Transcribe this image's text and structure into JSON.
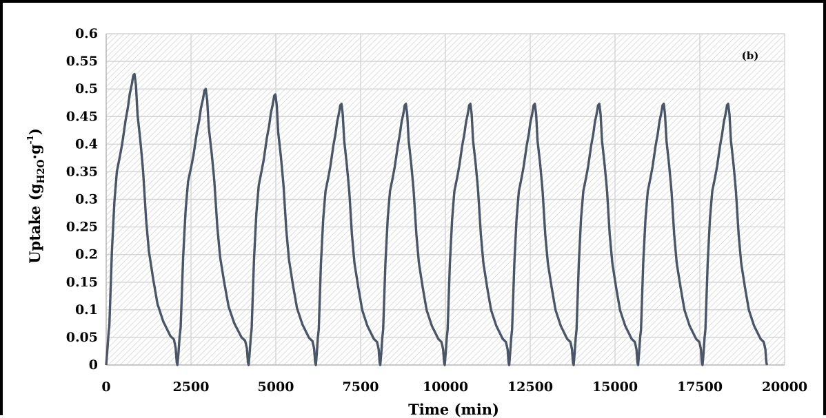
{
  "chart_data": {
    "type": "line",
    "title": "",
    "panel_label": "(b)",
    "xlabel": "Time (min)",
    "ylabel": {
      "main": "Uptake (g",
      "sub": "H2O",
      "mid": "·g",
      "sup": "-1",
      "end": ")"
    },
    "xlim": [
      0,
      20000
    ],
    "ylim": [
      0,
      0.6
    ],
    "xticks": [
      0,
      2500,
      5000,
      7500,
      10000,
      12500,
      15000,
      17500,
      20000
    ],
    "yticks": [
      0,
      0.05,
      0.1,
      0.15,
      0.2,
      0.25,
      0.3,
      0.35,
      0.4,
      0.45,
      0.5,
      0.55,
      0.6
    ],
    "grid": true,
    "line_color": "#4a5568",
    "series": [
      {
        "cycles": [
          {
            "start": 0,
            "peak": 0.527
          },
          {
            "start": 2100,
            "peak": 0.5
          },
          {
            "start": 4200,
            "peak": 0.49
          },
          {
            "start": 6180,
            "peak": 0.473
          },
          {
            "start": 8080,
            "peak": 0.473
          },
          {
            "start": 9980,
            "peak": 0.473
          },
          {
            "start": 11880,
            "peak": 0.473
          },
          {
            "start": 13780,
            "peak": 0.473
          },
          {
            "start": 15680,
            "peak": 0.473
          },
          {
            "start": 17580,
            "peak": 0.473
          }
        ],
        "end": 19480
      }
    ]
  }
}
